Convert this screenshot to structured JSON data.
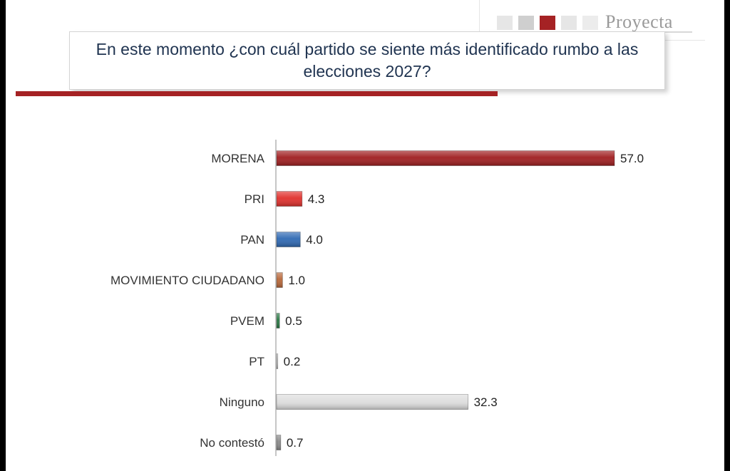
{
  "header": {
    "title": "En este momento ¿con cuál partido se siente más identificado rumbo a las elecciones 2027?",
    "logo_text": "Proyecta"
  },
  "chart_data": {
    "type": "bar",
    "orientation": "horizontal",
    "title": "En este momento ¿con cuál partido se siente más identificado rumbo a las elecciones 2027?",
    "categories": [
      "MORENA",
      "PRI",
      "PAN",
      "MOVIMIENTO CIUDADANO",
      "PVEM",
      "PT",
      "Ninguno",
      "No contestó"
    ],
    "values": [
      57.0,
      4.3,
      4.0,
      1.0,
      0.5,
      0.2,
      32.3,
      0.7
    ],
    "value_labels": [
      "57.0",
      "4.3",
      "4.0",
      "1.0",
      "0.5",
      "0.2",
      "32.3",
      "0.7"
    ],
    "bar_colors": [
      "#a01e20",
      "#e0302c",
      "#2f69b3",
      "#b8683a",
      "#2a7a45",
      "#c8c8c8",
      "#dedede",
      "#8a8a8a"
    ],
    "xlim": [
      0,
      57
    ],
    "grid": false,
    "legend": "none",
    "xlabel": "",
    "ylabel": ""
  },
  "colors": {
    "accent_red": "#a52224",
    "title_text": "#1f3350",
    "logo_squares": [
      "#e6e6e6",
      "#cfcfcf",
      "#a52224",
      "#e6e6e6",
      "#ececec"
    ]
  }
}
